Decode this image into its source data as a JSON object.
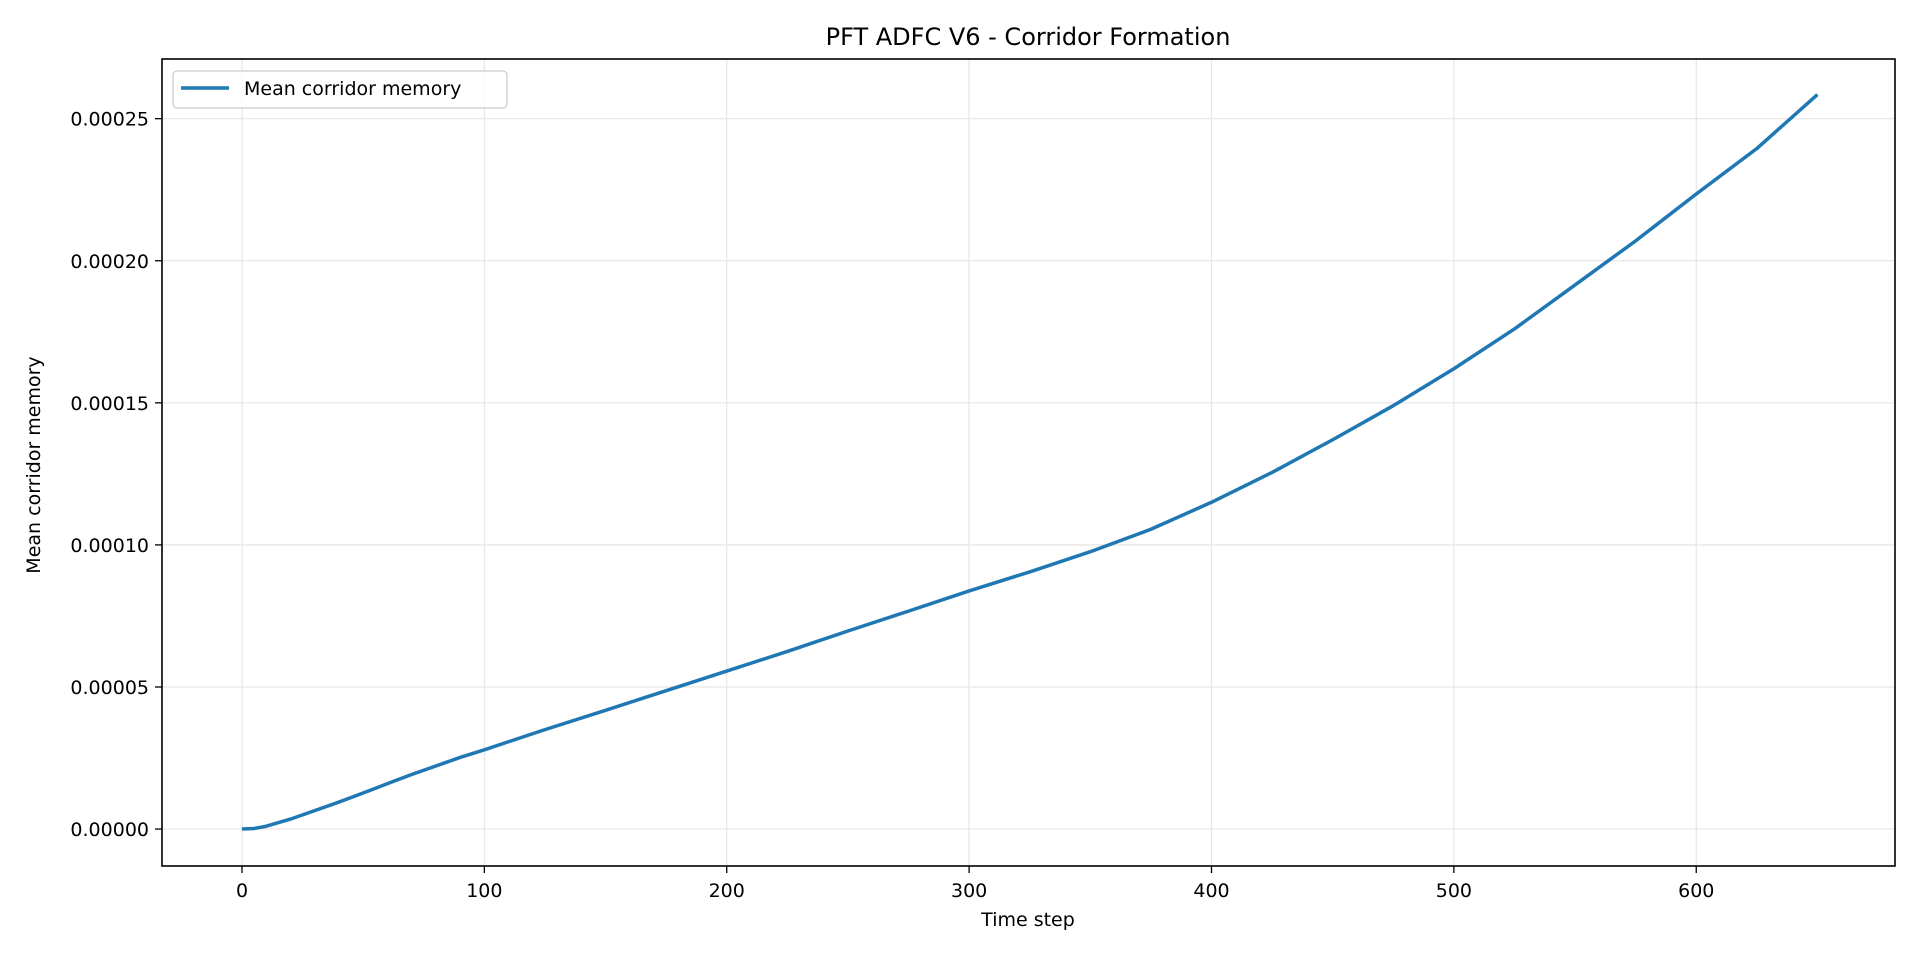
{
  "chart_data": {
    "type": "line",
    "title": "PFT ADFC V6 - Corridor Formation",
    "xlabel": "Time step",
    "ylabel": "Mean corridor memory",
    "xlim": [
      -33,
      682
    ],
    "ylim": [
      -1.3e-05,
      0.000271
    ],
    "xticks": [
      0,
      100,
      200,
      300,
      400,
      500,
      600
    ],
    "xtick_labels": [
      "0",
      "100",
      "200",
      "300",
      "400",
      "500",
      "600"
    ],
    "yticks": [
      0.0,
      5e-05,
      0.0001,
      0.00015,
      0.0002,
      0.00025
    ],
    "ytick_labels": [
      "0.00000",
      "0.00005",
      "0.00010",
      "0.00015",
      "0.00020",
      "0.00025"
    ],
    "grid": true,
    "legend_position": "upper-left",
    "series": [
      {
        "name": "Mean corridor memory",
        "color": "#1f77b4",
        "x": [
          0,
          5,
          10,
          20,
          30,
          40,
          50,
          60,
          70,
          80,
          90,
          100,
          125,
          150,
          175,
          200,
          225,
          250,
          275,
          300,
          325,
          350,
          375,
          400,
          425,
          450,
          475,
          500,
          525,
          550,
          575,
          600,
          625,
          650
        ],
        "y": [
          0.0,
          2e-07,
          1e-06,
          3.5e-06,
          6.5e-06,
          9.5e-06,
          1.27e-05,
          1.6e-05,
          1.92e-05,
          2.22e-05,
          2.52e-05,
          2.79e-05,
          3.5e-05,
          4.18e-05,
          4.87e-05,
          5.56e-05,
          6.25e-05,
          6.97e-05,
          7.67e-05,
          8.38e-05,
          9.05e-05,
          9.76e-05,
          0.0001055,
          0.000115,
          0.0001255,
          0.000137,
          0.000149,
          0.000162,
          0.000176,
          0.0001915,
          0.000207,
          0.0002235,
          0.0002395,
          0.0002585
        ]
      }
    ]
  }
}
